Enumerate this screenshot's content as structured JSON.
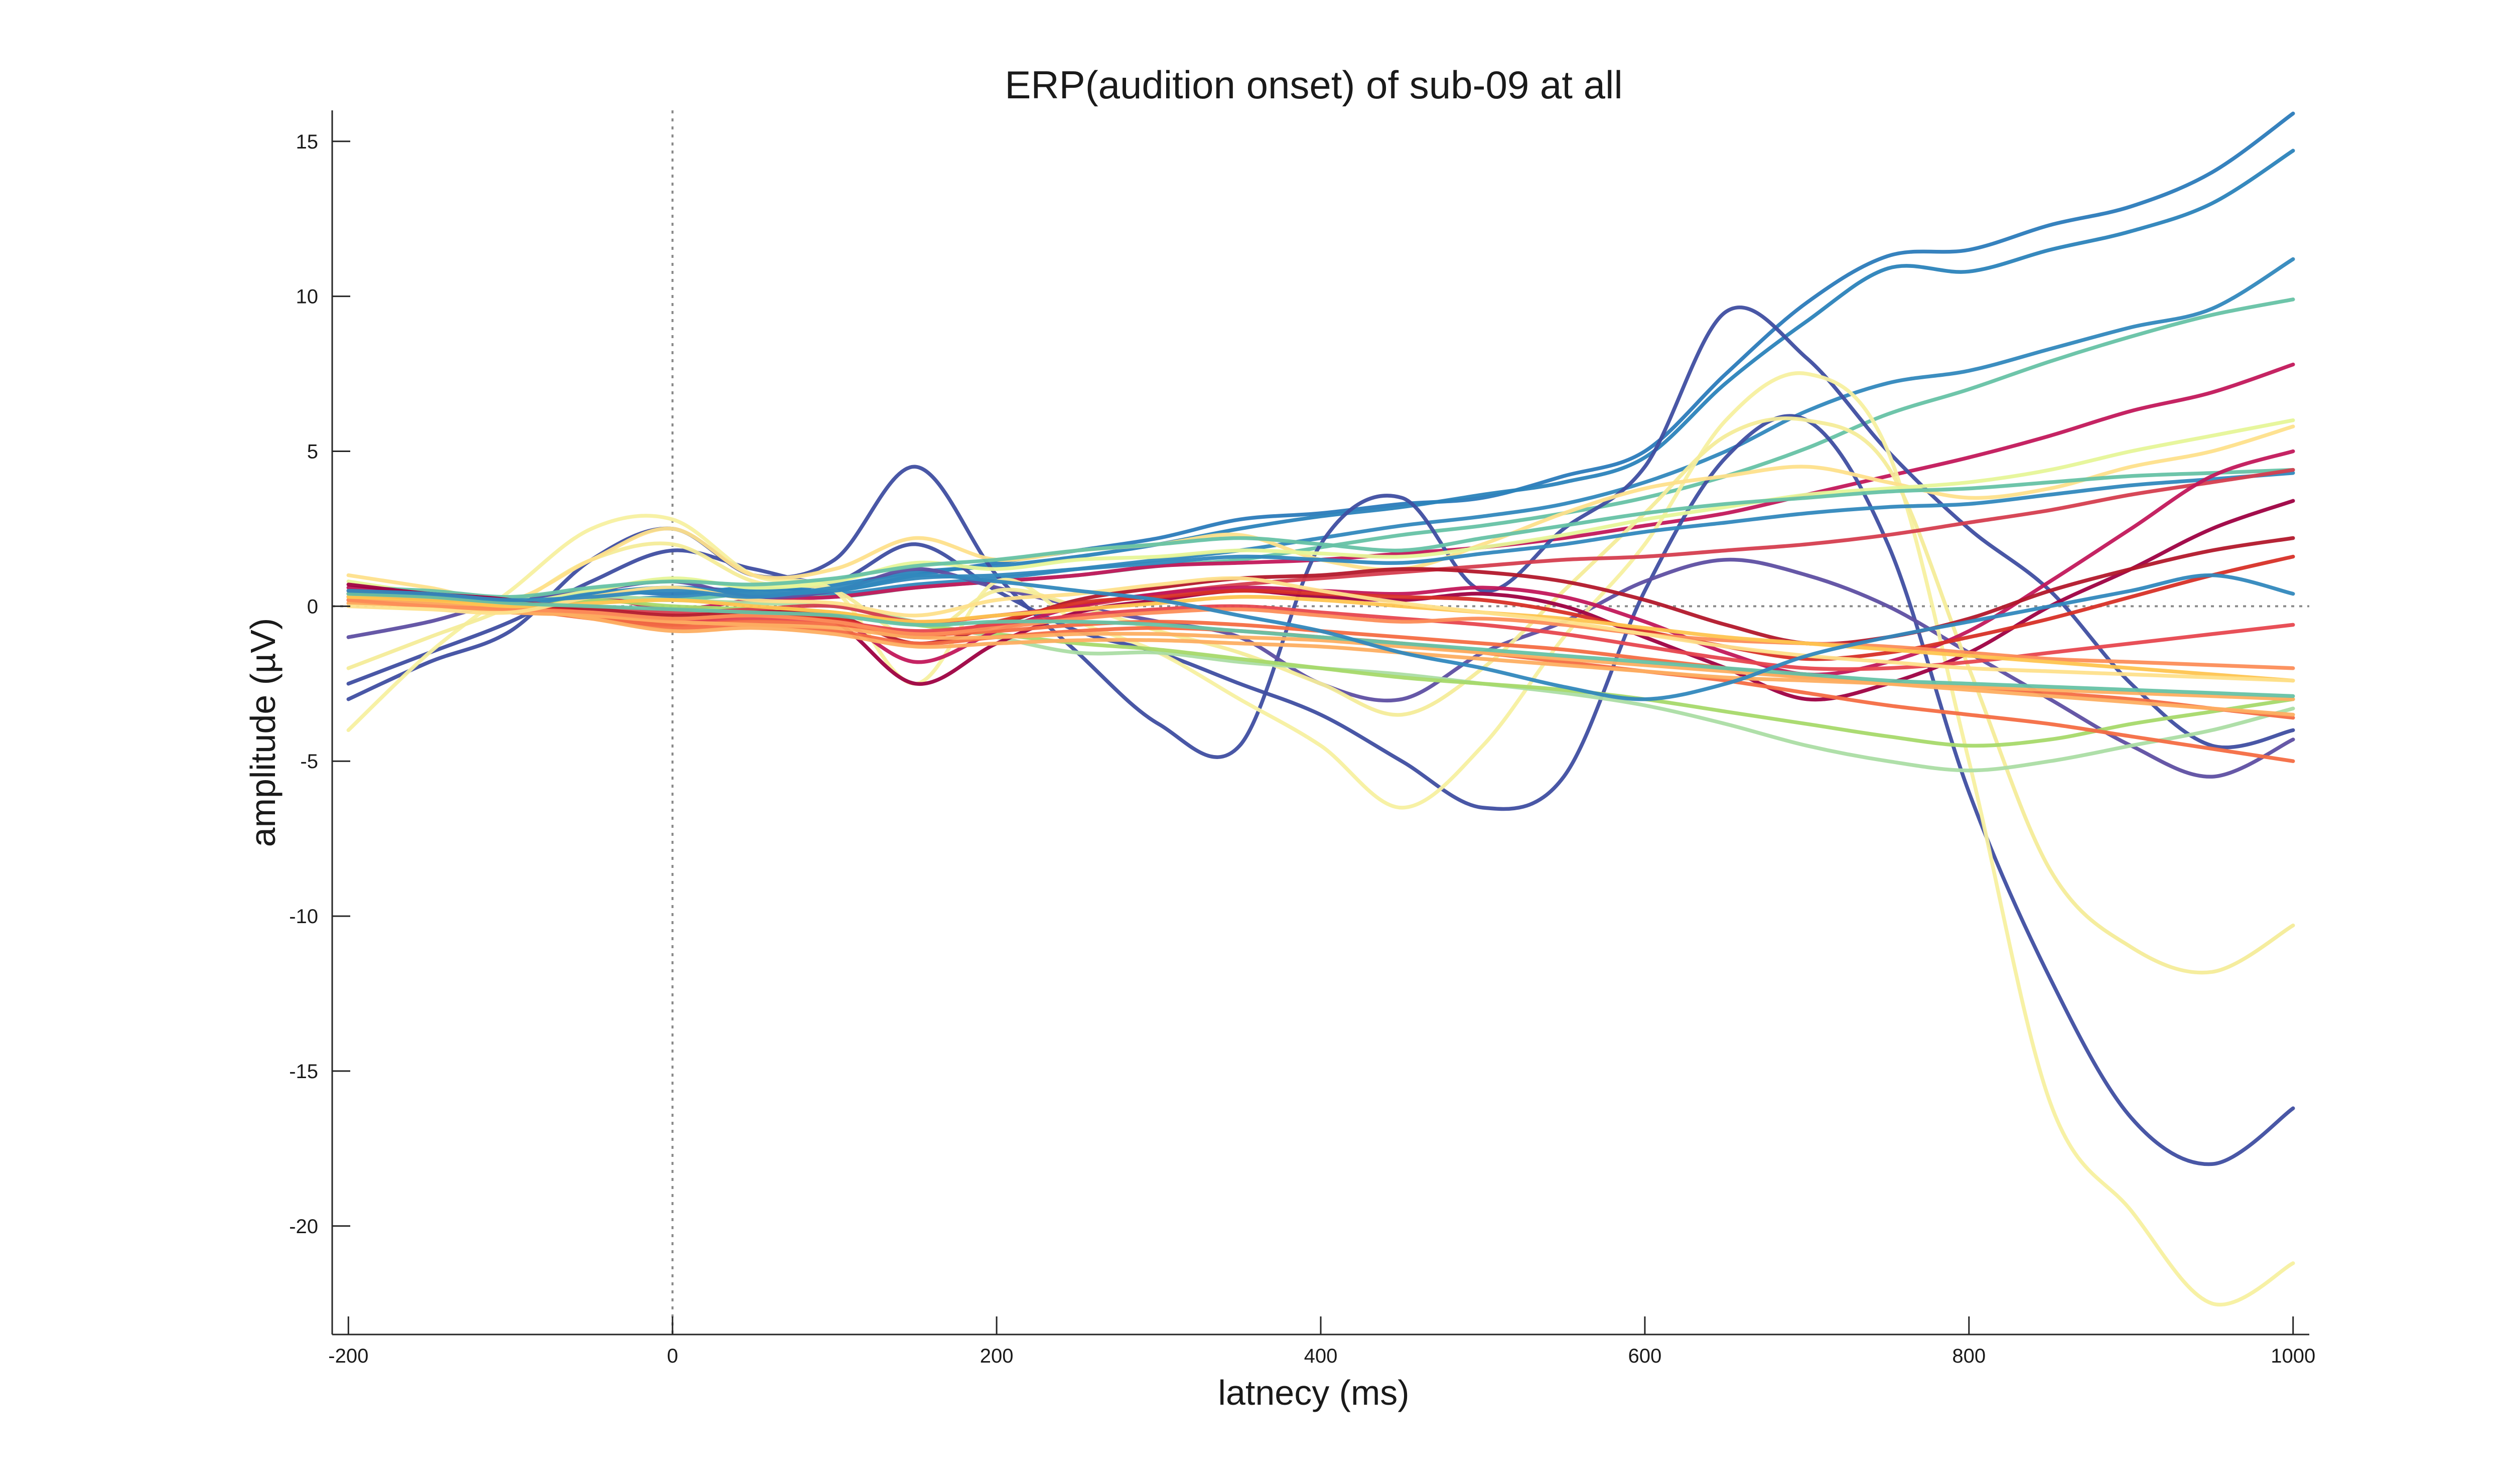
{
  "chart_data": {
    "type": "line",
    "title": "ERP(audition onset) of sub-09 at all",
    "xlabel": "latnecy (ms)",
    "ylabel": "amplitude (µV)",
    "xlim": [
      -210,
      1010
    ],
    "ylim": [
      -23.5,
      16
    ],
    "xticks": [
      -200,
      0,
      200,
      400,
      600,
      800,
      1000
    ],
    "yticks": [
      -20,
      -15,
      -10,
      -5,
      0,
      5,
      10,
      15
    ],
    "grid": false,
    "legend": "none",
    "reference_lines": {
      "x": 0,
      "y": 0,
      "style": "dotted"
    },
    "x": [
      -200,
      -150,
      -100,
      -50,
      0,
      50,
      100,
      150,
      200,
      250,
      300,
      350,
      400,
      450,
      500,
      550,
      600,
      650,
      700,
      750,
      800,
      850,
      900,
      950,
      1000
    ],
    "series": [
      {
        "color": "#2b7bba",
        "values": [
          0.3,
          0.2,
          0.1,
          0.5,
          0.4,
          0.6,
          0.5,
          1.0,
          1.4,
          1.8,
          2.2,
          2.8,
          3.0,
          3.3,
          3.5,
          4.2,
          5.0,
          7.5,
          9.8,
          11.3,
          11.5,
          12.3,
          12.9,
          14.0,
          15.9
        ]
      },
      {
        "color": "#2b83ba",
        "values": [
          0.4,
          0.3,
          0.2,
          0.4,
          0.6,
          0.5,
          0.7,
          1.1,
          1.3,
          1.6,
          2.0,
          2.5,
          2.9,
          3.2,
          3.6,
          4.0,
          4.8,
          7.2,
          9.2,
          10.9,
          10.8,
          11.5,
          12.1,
          13.0,
          14.7
        ]
      },
      {
        "color": "#3288bd",
        "values": [
          0.5,
          0.3,
          0.0,
          0.2,
          0.3,
          0.5,
          0.4,
          0.7,
          0.9,
          1.2,
          1.5,
          1.8,
          2.2,
          2.6,
          2.9,
          3.3,
          4.0,
          5.0,
          6.3,
          7.2,
          7.6,
          8.3,
          9.0,
          9.6,
          11.2
        ]
      },
      {
        "color": "#66c2a5",
        "values": [
          0.3,
          0.2,
          0.1,
          0.3,
          0.2,
          0.4,
          0.3,
          0.6,
          0.8,
          1.0,
          1.3,
          1.5,
          1.9,
          2.3,
          2.6,
          3.0,
          3.5,
          4.2,
          5.1,
          6.2,
          7.0,
          7.9,
          8.7,
          9.4,
          9.9
        ]
      },
      {
        "color": "#c2185b",
        "values": [
          0.2,
          0.1,
          0.0,
          0.3,
          -0.1,
          0.2,
          0.3,
          0.6,
          0.8,
          1.0,
          1.3,
          1.4,
          1.5,
          1.7,
          1.9,
          2.2,
          2.6,
          3.0,
          3.6,
          4.2,
          4.8,
          5.5,
          6.3,
          6.9,
          7.8
        ]
      },
      {
        "color": "#3f4ea1",
        "values": [
          -3.0,
          -1.8,
          -0.8,
          1.5,
          2.5,
          1.0,
          1.5,
          4.5,
          1.0,
          -1.5,
          -3.8,
          -4.5,
          2.0,
          3.5,
          0.5,
          2.5,
          4.5,
          9.5,
          8.0,
          5.0,
          2.5,
          0.5,
          -2.5,
          -4.5,
          -4.0
        ]
      },
      {
        "color": "#3f4ea1",
        "values": [
          -2.5,
          -1.5,
          -0.5,
          0.8,
          1.8,
          1.2,
          0.8,
          2.0,
          0.5,
          -0.8,
          -1.5,
          -2.5,
          -3.5,
          -5.0,
          -6.5,
          -5.5,
          0.5,
          4.8,
          6.0,
          2.0,
          -6.0,
          -12.0,
          -16.5,
          -18.0,
          -16.2
        ]
      },
      {
        "color": "#5e4fa2",
        "values": [
          -1.0,
          -0.5,
          0.2,
          0.5,
          0.8,
          0.3,
          0.5,
          1.2,
          0.6,
          0.0,
          -0.5,
          -1.0,
          -2.5,
          -3.0,
          -1.5,
          -0.5,
          0.8,
          1.5,
          1.0,
          0.0,
          -1.5,
          -3.0,
          -4.5,
          -5.5,
          -4.3
        ]
      },
      {
        "color": "#f7f0a0",
        "values": [
          -4.0,
          -1.5,
          0.5,
          2.5,
          2.8,
          1.0,
          0.5,
          -2.5,
          0.8,
          -0.5,
          -1.5,
          -3.0,
          -4.5,
          -6.5,
          -4.5,
          -1.0,
          2.0,
          6.0,
          7.5,
          5.0,
          -5.0,
          -16.0,
          -19.5,
          -22.5,
          -21.2
        ]
      },
      {
        "color": "#f4ec99",
        "values": [
          -2.0,
          -1.0,
          0.0,
          1.5,
          2.0,
          0.8,
          0.5,
          -1.0,
          0.5,
          0.0,
          -0.8,
          -1.5,
          -2.5,
          -3.5,
          -2.0,
          0.5,
          3.0,
          5.5,
          6.0,
          4.5,
          -2.0,
          -8.5,
          -11.0,
          -11.8,
          -10.3
        ]
      },
      {
        "color": "#fee08b",
        "values": [
          1.0,
          0.6,
          0.2,
          1.5,
          2.5,
          1.0,
          1.2,
          2.2,
          1.5,
          1.8,
          2.0,
          2.3,
          1.5,
          1.2,
          2.0,
          3.0,
          3.8,
          4.2,
          4.5,
          4.0,
          3.5,
          3.8,
          4.5,
          5.0,
          5.8
        ]
      },
      {
        "color": "#e6f598",
        "values": [
          0.8,
          0.4,
          0.1,
          0.5,
          0.9,
          0.6,
          0.8,
          1.4,
          1.2,
          1.5,
          1.6,
          1.8,
          1.7,
          1.6,
          1.9,
          2.3,
          2.8,
          3.2,
          3.6,
          3.8,
          4.0,
          4.4,
          5.0,
          5.5,
          6.0
        ]
      },
      {
        "color": "#abdda4",
        "values": [
          0.5,
          0.3,
          0.0,
          0.3,
          0.2,
          0.1,
          0.0,
          -0.5,
          -1.0,
          -1.5,
          -1.5,
          -1.8,
          -2.0,
          -2.2,
          -2.5,
          -2.8,
          -3.2,
          -3.8,
          -4.5,
          -5.0,
          -5.3,
          -5.0,
          -4.5,
          -4.0,
          -3.3
        ]
      },
      {
        "color": "#a6d96a",
        "values": [
          0.4,
          0.2,
          0.1,
          0.2,
          0.0,
          -0.1,
          -0.2,
          -0.6,
          -0.9,
          -1.2,
          -1.4,
          -1.7,
          -2.0,
          -2.3,
          -2.5,
          -2.7,
          -3.0,
          -3.4,
          -3.8,
          -4.2,
          -4.5,
          -4.3,
          -3.8,
          -3.4,
          -3.0
        ]
      },
      {
        "color": "#66c2a5",
        "values": [
          0.6,
          0.5,
          0.3,
          0.6,
          0.8,
          0.7,
          0.9,
          1.3,
          1.5,
          1.8,
          2.0,
          2.2,
          2.0,
          1.8,
          2.2,
          2.6,
          3.0,
          3.3,
          3.5,
          3.7,
          3.8,
          4.0,
          4.2,
          4.3,
          4.4
        ]
      },
      {
        "color": "#3288bd",
        "values": [
          0.2,
          0.1,
          0.0,
          0.4,
          0.6,
          0.4,
          0.5,
          0.9,
          1.0,
          1.2,
          1.4,
          1.6,
          1.5,
          1.4,
          1.7,
          2.0,
          2.4,
          2.7,
          3.0,
          3.2,
          3.3,
          3.6,
          3.9,
          4.1,
          4.3
        ]
      },
      {
        "color": "#d53e4f",
        "values": [
          0.5,
          0.3,
          0.1,
          0.0,
          -0.2,
          -0.1,
          0.0,
          -0.5,
          -0.3,
          0.0,
          0.4,
          0.7,
          0.9,
          1.1,
          1.3,
          1.5,
          1.6,
          1.8,
          2.0,
          2.3,
          2.7,
          3.1,
          3.6,
          4.0,
          4.4
        ]
      },
      {
        "color": "#c2185b",
        "values": [
          0.6,
          0.4,
          0.2,
          -0.2,
          -0.5,
          -0.3,
          -0.4,
          -1.8,
          -0.8,
          0.0,
          0.4,
          0.6,
          0.5,
          0.4,
          0.6,
          0.3,
          -0.5,
          -1.5,
          -2.2,
          -1.8,
          -0.8,
          0.8,
          2.5,
          4.2,
          5.0
        ]
      },
      {
        "color": "#9e0142",
        "values": [
          0.7,
          0.4,
          0.2,
          -0.3,
          -0.6,
          -0.2,
          -0.5,
          -2.5,
          -1.2,
          -0.2,
          0.2,
          0.5,
          0.3,
          0.2,
          0.4,
          0.0,
          -1.0,
          -2.0,
          -3.0,
          -2.5,
          -1.5,
          0.0,
          1.2,
          2.5,
          3.4
        ]
      },
      {
        "color": "#b2182b",
        "values": [
          0.4,
          0.2,
          0.0,
          -0.1,
          -0.3,
          -0.2,
          -0.3,
          -1.2,
          -0.6,
          0.2,
          0.6,
          0.9,
          1.0,
          1.2,
          1.1,
          0.8,
          0.2,
          -0.6,
          -1.2,
          -1.0,
          -0.4,
          0.5,
          1.2,
          1.8,
          2.2
        ]
      },
      {
        "color": "#d73027",
        "values": [
          0.3,
          0.2,
          0.0,
          -0.2,
          -0.4,
          -0.3,
          -0.4,
          -1.0,
          -0.5,
          0.1,
          0.3,
          0.5,
          0.4,
          0.3,
          0.2,
          -0.2,
          -0.8,
          -1.3,
          -1.7,
          -1.5,
          -1.0,
          -0.4,
          0.3,
          1.0,
          1.6
        ]
      },
      {
        "color": "#e7474f",
        "values": [
          0.2,
          0.1,
          -0.1,
          -0.2,
          -0.5,
          -0.4,
          -0.5,
          -0.8,
          -0.6,
          -0.3,
          -0.1,
          0.0,
          -0.2,
          -0.4,
          -0.6,
          -0.9,
          -1.3,
          -1.7,
          -2.0,
          -2.0,
          -1.8,
          -1.5,
          -1.2,
          -0.9,
          -0.6
        ]
      },
      {
        "color": "#f46d43",
        "values": [
          0.1,
          0.0,
          -0.2,
          -0.3,
          -0.6,
          -0.5,
          -0.6,
          -0.9,
          -0.8,
          -0.6,
          -0.5,
          -0.6,
          -0.8,
          -1.0,
          -1.2,
          -1.4,
          -1.7,
          -2.0,
          -2.3,
          -2.5,
          -2.6,
          -2.8,
          -3.0,
          -3.3,
          -3.6
        ]
      },
      {
        "color": "#f46d43",
        "values": [
          0.2,
          0.0,
          -0.1,
          -0.4,
          -0.7,
          -0.6,
          -0.8,
          -1.2,
          -1.0,
          -0.8,
          -0.7,
          -0.8,
          -1.0,
          -1.2,
          -1.5,
          -1.8,
          -2.1,
          -2.4,
          -2.8,
          -3.2,
          -3.5,
          -3.8,
          -4.2,
          -4.6,
          -5.0
        ]
      },
      {
        "color": "#fdae61",
        "values": [
          0.1,
          0.0,
          -0.2,
          -0.3,
          -0.5,
          -0.6,
          -0.7,
          -1.0,
          -1.0,
          -0.9,
          -0.9,
          -1.0,
          -1.1,
          -1.3,
          -1.5,
          -1.7,
          -1.9,
          -2.1,
          -2.3,
          -2.5,
          -2.7,
          -2.9,
          -3.1,
          -3.3,
          -3.5
        ]
      },
      {
        "color": "#fdae61",
        "values": [
          0.3,
          0.1,
          0.0,
          -0.4,
          -0.8,
          -0.7,
          -0.9,
          -1.3,
          -1.2,
          -1.1,
          -1.1,
          -1.2,
          -1.3,
          -1.5,
          -1.7,
          -1.9,
          -2.1,
          -2.3,
          -2.4,
          -2.5,
          -2.6,
          -2.7,
          -2.8,
          -2.9,
          -3.0
        ]
      },
      {
        "color": "#fc8d59",
        "values": [
          0.2,
          0.0,
          -0.1,
          -0.2,
          -0.4,
          -0.3,
          -0.5,
          -0.9,
          -0.7,
          -0.4,
          -0.2,
          -0.1,
          -0.3,
          -0.5,
          -0.4,
          -0.6,
          -0.9,
          -1.1,
          -1.2,
          -1.3,
          -1.5,
          -1.7,
          -1.8,
          -1.9,
          -2.0
        ]
      },
      {
        "color": "#fec44f",
        "values": [
          0.3,
          0.2,
          0.0,
          0.1,
          0.2,
          0.0,
          -0.2,
          -0.5,
          -0.3,
          -0.1,
          0.1,
          0.3,
          0.2,
          0.0,
          -0.2,
          -0.4,
          -0.7,
          -1.0,
          -1.2,
          -1.4,
          -1.6,
          -1.8,
          -2.0,
          -2.2,
          -2.4
        ]
      },
      {
        "color": "#fee08b",
        "values": [
          0.0,
          -0.1,
          -0.2,
          0.3,
          0.6,
          0.2,
          0.1,
          -0.3,
          0.2,
          0.4,
          0.7,
          0.9,
          0.5,
          0.1,
          -0.2,
          -0.5,
          -0.9,
          -1.3,
          -1.6,
          -1.8,
          -2.0,
          -2.1,
          -2.2,
          -2.3,
          -2.4
        ]
      },
      {
        "color": "#66c2a5",
        "values": [
          0.4,
          0.3,
          0.1,
          0.0,
          -0.1,
          -0.2,
          -0.3,
          -0.6,
          -0.5,
          -0.5,
          -0.6,
          -0.8,
          -1.0,
          -1.2,
          -1.4,
          -1.6,
          -1.8,
          -2.0,
          -2.2,
          -2.4,
          -2.5,
          -2.6,
          -2.7,
          -2.8,
          -2.9
        ]
      },
      {
        "color": "#3288bd",
        "values": [
          0.5,
          0.4,
          0.2,
          0.3,
          0.5,
          0.3,
          0.6,
          1.0,
          0.8,
          0.5,
          0.2,
          -0.3,
          -0.8,
          -1.5,
          -2.0,
          -2.6,
          -3.0,
          -2.5,
          -1.6,
          -1.0,
          -0.5,
          0.0,
          0.5,
          1.0,
          0.4
        ]
      }
    ]
  }
}
